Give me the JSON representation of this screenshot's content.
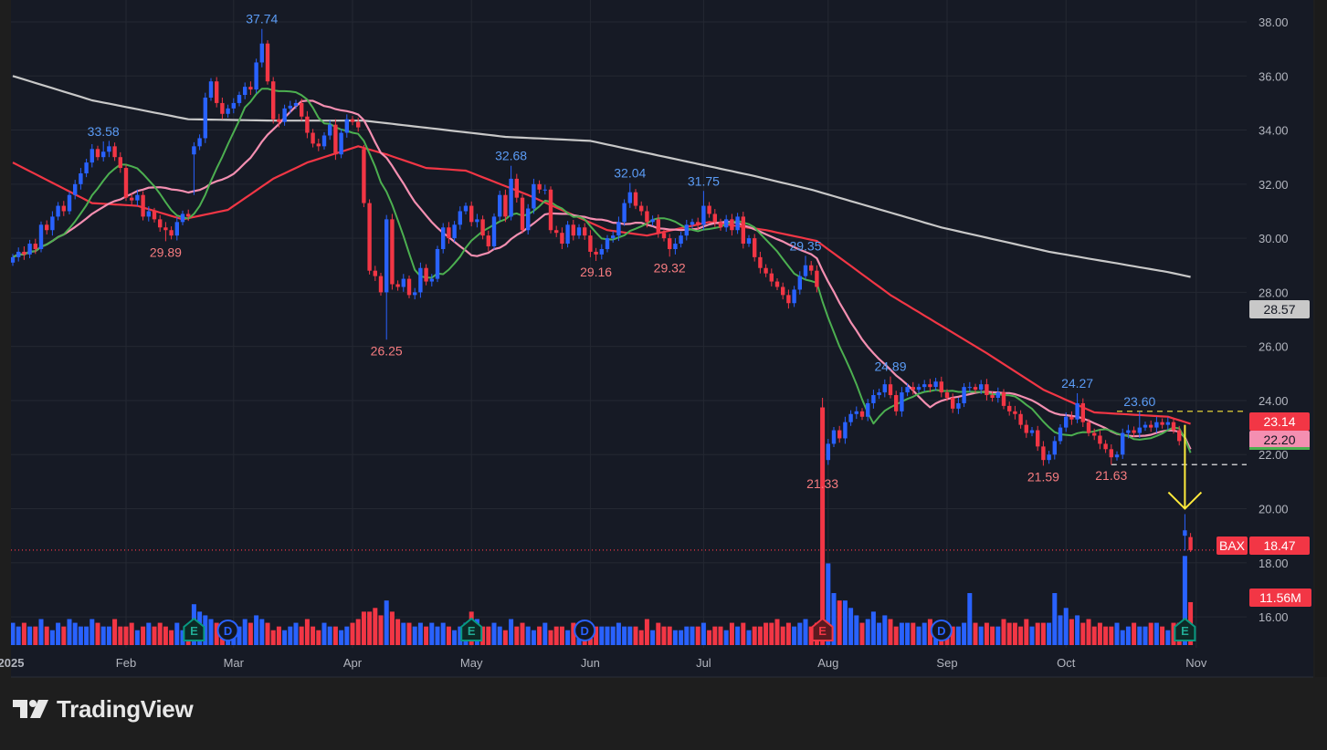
{
  "brand": "TradingView",
  "chart_data": {
    "type": "candlestick",
    "symbol": "BAX",
    "year": "2025",
    "colors": {
      "up": "#2962ff",
      "down": "#f23645",
      "background": "#161a25",
      "grid": "#242832",
      "axis_text": "#b2b5be",
      "high_label": "#5b9cf6",
      "low_label": "#f77c80",
      "ma_short": "#4caf50",
      "ma_mid": "#f48fb1",
      "ma_long": "#f23645",
      "ma_200": "#c8c8c8"
    },
    "y_axis": {
      "ticks": [
        "16.00",
        "18.00",
        "20.00",
        "22.00",
        "24.00",
        "26.00",
        "28.00",
        "30.00",
        "32.00",
        "34.00",
        "36.00",
        "38.00"
      ],
      "range": [
        16,
        38
      ]
    },
    "x_axis": {
      "labels": [
        {
          "text": "2025",
          "month": "Jan"
        },
        {
          "text": "Feb",
          "month": "Feb"
        },
        {
          "text": "Mar",
          "month": "Mar"
        },
        {
          "text": "Apr",
          "month": "Apr"
        },
        {
          "text": "May",
          "month": "May"
        },
        {
          "text": "Jun",
          "month": "Jun"
        },
        {
          "text": "Jul",
          "month": "Jul"
        },
        {
          "text": "Aug",
          "month": "Aug"
        },
        {
          "text": "Sep",
          "month": "Sep"
        },
        {
          "text": "Oct",
          "month": "Oct"
        },
        {
          "text": "Nov",
          "month": "Nov"
        }
      ]
    },
    "months": [
      {
        "label": "Jan",
        "days": [
          2,
          3,
          6,
          7,
          8,
          10,
          13,
          14,
          15,
          16,
          17,
          21,
          22,
          23,
          24,
          27,
          28,
          29,
          30,
          31
        ],
        "close": [
          29.3,
          29.5,
          29.4,
          29.8,
          29.6,
          30.5,
          30.3,
          30.8,
          31.2,
          31.0,
          31.6,
          32.0,
          32.4,
          32.8,
          33.3,
          33.0,
          33.2,
          33.4,
          33.0,
          32.6
        ],
        "volume": [
          6,
          5,
          6,
          5,
          5,
          7,
          5,
          4,
          6,
          5,
          7,
          6,
          5,
          5,
          7,
          6,
          5,
          5,
          7,
          5
        ]
      },
      {
        "label": "Feb",
        "days": [
          3,
          4,
          5,
          6,
          7,
          10,
          11,
          12,
          13,
          14,
          18,
          19,
          20,
          21,
          24,
          25,
          26,
          27,
          28
        ],
        "close": [
          31.5,
          31.4,
          31.6,
          30.8,
          31.0,
          30.7,
          30.4,
          30.3,
          30.1,
          30.6,
          30.9,
          30.8,
          33.4,
          33.7,
          35.2,
          35.8,
          35.0,
          34.6,
          34.8
        ],
        "volume": [
          5,
          6,
          4,
          5,
          6,
          5,
          6,
          5,
          4,
          6,
          4,
          5,
          11,
          9,
          8,
          7,
          6,
          5,
          4
        ]
      },
      {
        "label": "Mar",
        "days": [
          3,
          4,
          5,
          6,
          7,
          10,
          11,
          12,
          13,
          14,
          17,
          18,
          19,
          20,
          21,
          24,
          25,
          26,
          27,
          28,
          31
        ],
        "close": [
          35.0,
          35.3,
          35.6,
          35.5,
          36.5,
          37.2,
          35.8,
          34.4,
          34.3,
          34.8,
          34.9,
          35.0,
          34.5,
          33.9,
          33.5,
          33.4,
          33.8,
          34.2,
          33.1,
          33.9,
          34.4
        ],
        "volume": [
          6,
          5,
          7,
          6,
          8,
          7,
          6,
          4,
          5,
          4,
          5,
          6,
          5,
          7,
          5,
          4,
          6,
          5,
          5,
          4,
          5
        ]
      },
      {
        "label": "Apr",
        "days": [
          1,
          2,
          3,
          4,
          7,
          8,
          9,
          10,
          11,
          14,
          15,
          16,
          17,
          21,
          22,
          23,
          24,
          25,
          28,
          29,
          30
        ],
        "close": [
          34.3,
          34.1,
          31.3,
          28.8,
          28.6,
          28.0,
          30.7,
          28.3,
          28.2,
          28.5,
          27.9,
          28.0,
          28.9,
          28.4,
          28.5,
          29.6,
          30.4,
          30.0,
          30.5,
          31.0,
          31.2
        ],
        "volume": [
          6,
          7,
          9,
          9,
          10,
          8,
          12,
          9,
          7,
          6,
          6,
          5,
          6,
          5,
          6,
          5,
          6,
          5,
          4,
          5,
          6
        ]
      },
      {
        "label": "May",
        "days": [
          1,
          2,
          5,
          6,
          7,
          8,
          9,
          12,
          13,
          14,
          15,
          16,
          19,
          20,
          21,
          22,
          23,
          27,
          28,
          29,
          30
        ],
        "close": [
          30.6,
          30.7,
          30.1,
          29.7,
          30.8,
          31.6,
          30.8,
          32.2,
          31.5,
          30.3,
          31.1,
          32.0,
          31.8,
          31.8,
          30.3,
          30.2,
          29.8,
          30.5,
          30.1,
          30.4,
          30.1
        ],
        "volume": [
          9,
          7,
          5,
          5,
          6,
          5,
          4,
          7,
          5,
          6,
          5,
          4,
          5,
          6,
          4,
          5,
          5,
          4,
          6,
          5,
          5
        ]
      },
      {
        "label": "Jun",
        "days": [
          2,
          3,
          4,
          5,
          6,
          9,
          10,
          11,
          12,
          13,
          16,
          17,
          18,
          20,
          23,
          24,
          25,
          26,
          27,
          30
        ],
        "close": [
          29.5,
          29.4,
          29.6,
          30.0,
          30.1,
          30.6,
          31.3,
          31.7,
          31.2,
          31.0,
          30.6,
          30.7,
          30.2,
          30.0,
          29.6,
          29.8,
          30.1,
          30.5,
          30.6,
          30.5
        ],
        "volume": [
          6,
          5,
          5,
          5,
          5,
          6,
          5,
          5,
          5,
          4,
          7,
          4,
          6,
          5,
          5,
          4,
          4,
          5,
          5,
          5
        ]
      },
      {
        "label": "Jul",
        "days": [
          1,
          2,
          3,
          7,
          8,
          9,
          10,
          11,
          14,
          15,
          16,
          17,
          18,
          21,
          22,
          23,
          24,
          25,
          28,
          29,
          30,
          31
        ],
        "close": [
          31.2,
          30.9,
          30.6,
          30.4,
          30.7,
          30.3,
          30.8,
          29.8,
          30.0,
          29.3,
          28.9,
          28.7,
          28.4,
          28.2,
          27.9,
          27.6,
          28.1,
          28.6,
          29.0,
          28.8,
          28.2,
          21.8
        ],
        "volume": [
          6,
          4,
          5,
          5,
          4,
          6,
          5,
          6,
          4,
          5,
          5,
          6,
          6,
          7,
          5,
          6,
          5,
          6,
          7,
          5,
          6,
          64
        ]
      },
      {
        "label": "Aug",
        "days": [
          1,
          4,
          5,
          6,
          7,
          8,
          11,
          12,
          13,
          14,
          15,
          18,
          19,
          20,
          21,
          22,
          25,
          26,
          27,
          28,
          29
        ],
        "close": [
          22.4,
          22.9,
          22.6,
          23.2,
          23.5,
          23.6,
          23.4,
          23.9,
          24.2,
          24.3,
          24.6,
          24.2,
          23.6,
          24.3,
          24.5,
          24.4,
          24.5,
          24.6,
          24.5,
          24.7,
          24.3
        ],
        "volume": [
          22,
          14,
          12,
          12,
          10,
          8,
          6,
          7,
          9,
          6,
          8,
          7,
          5,
          6,
          6,
          6,
          5,
          6,
          7,
          5,
          5
        ]
      },
      {
        "label": "Sep",
        "days": [
          2,
          3,
          4,
          5,
          8,
          9,
          10,
          11,
          12,
          15,
          16,
          17,
          18,
          19,
          22,
          23,
          24,
          25,
          26,
          29,
          30
        ],
        "close": [
          24.1,
          23.7,
          23.9,
          24.5,
          24.5,
          24.4,
          24.6,
          24.2,
          24.1,
          24.3,
          23.8,
          23.6,
          23.5,
          23.1,
          22.8,
          22.9,
          22.3,
          21.8,
          22.0,
          22.5,
          23.0
        ],
        "volume": [
          6,
          5,
          5,
          6,
          14,
          6,
          5,
          6,
          5,
          5,
          7,
          6,
          6,
          5,
          7,
          5,
          6,
          6,
          6,
          14,
          8
        ]
      },
      {
        "label": "Oct",
        "days": [
          1,
          2,
          3,
          6,
          7,
          8,
          9,
          10,
          13,
          14,
          15,
          16,
          17,
          20,
          21,
          22,
          23,
          24,
          27,
          28,
          29,
          30,
          31
        ],
        "close": [
          23.4,
          23.3,
          23.9,
          23.2,
          22.8,
          22.7,
          22.4,
          22.2,
          21.9,
          22.0,
          22.8,
          22.9,
          22.8,
          23.0,
          23.1,
          23.0,
          23.2,
          23.1,
          23.2,
          22.9,
          22.5,
          19.2,
          18.47
        ],
        "volume": [
          10,
          7,
          8,
          6,
          7,
          5,
          6,
          5,
          5,
          6,
          4,
          5,
          6,
          5,
          5,
          6,
          6,
          5,
          4,
          6,
          6,
          24,
          11.56
        ]
      }
    ],
    "gap_candles": [
      {
        "month": "Feb",
        "day": 20,
        "open": 33.1,
        "low": 31.6
      },
      {
        "month": "Apr",
        "day": 3,
        "open": 33.3
      },
      {
        "month": "Jul",
        "day": 31,
        "open": 23.7,
        "high": 24.1
      },
      {
        "month": "Oct",
        "day": 30,
        "open": 19.0,
        "high": 19.8,
        "low": 18.45
      },
      {
        "month": "Oct",
        "day": 31,
        "open": 18.95,
        "high": 19.1,
        "low": 18.4
      }
    ],
    "extremes": [
      {
        "month": "Jan",
        "day": 28,
        "type": "high",
        "value": "33.58"
      },
      {
        "month": "Feb",
        "day": 12,
        "type": "low",
        "value": "29.89"
      },
      {
        "month": "Mar",
        "day": 10,
        "type": "high",
        "value": "37.74"
      },
      {
        "month": "Apr",
        "day": 9,
        "type": "low",
        "value": "26.25"
      },
      {
        "month": "May",
        "day": 12,
        "type": "high",
        "value": "32.68"
      },
      {
        "month": "Jun",
        "day": 3,
        "type": "low",
        "value": "29.16"
      },
      {
        "month": "Jun",
        "day": 11,
        "type": "high",
        "value": "32.04"
      },
      {
        "month": "Jun",
        "day": 23,
        "type": "low",
        "value": "29.32"
      },
      {
        "month": "Jul",
        "day": 1,
        "type": "high",
        "value": "31.75"
      },
      {
        "month": "Jul",
        "day": 28,
        "type": "high",
        "value": "29.35"
      },
      {
        "month": "Jul",
        "day": 31,
        "type": "low",
        "value": "21.33"
      },
      {
        "month": "Aug",
        "day": 18,
        "type": "high",
        "value": "24.89"
      },
      {
        "month": "Sep",
        "day": 25,
        "type": "low",
        "value": "21.59"
      },
      {
        "month": "Oct",
        "day": 3,
        "type": "high",
        "value": "24.27"
      },
      {
        "month": "Oct",
        "day": 13,
        "type": "low",
        "value": "21.63"
      },
      {
        "month": "Oct",
        "day": 20,
        "type": "high",
        "value": "23.60"
      }
    ],
    "ma_long_points": [
      {
        "month": "Jan",
        "day": 2,
        "value": 32.8
      },
      {
        "month": "Jan",
        "day": 24,
        "value": 31.3
      },
      {
        "month": "Feb",
        "day": 5,
        "value": 31.2
      },
      {
        "month": "Feb",
        "day": 18,
        "value": 30.7
      },
      {
        "month": "Feb",
        "day": 28,
        "value": 31.05
      },
      {
        "month": "Mar",
        "day": 12,
        "value": 32.2
      },
      {
        "month": "Mar",
        "day": 20,
        "value": 32.8
      },
      {
        "month": "Apr",
        "day": 2,
        "value": 33.4
      },
      {
        "month": "Apr",
        "day": 9,
        "value": 33.1
      },
      {
        "month": "Apr",
        "day": 21,
        "value": 32.6
      },
      {
        "month": "Apr",
        "day": 30,
        "value": 32.5
      },
      {
        "month": "May",
        "day": 15,
        "value": 31.6
      },
      {
        "month": "Jun",
        "day": 5,
        "value": 30.3
      },
      {
        "month": "Jun",
        "day": 16,
        "value": 30.1
      },
      {
        "month": "Jul",
        "day": 2,
        "value": 30.6
      },
      {
        "month": "Jul",
        "day": 17,
        "value": 30.3
      },
      {
        "month": "Jul",
        "day": 30,
        "value": 29.9
      },
      {
        "month": "Aug",
        "day": 18,
        "value": 27.9
      },
      {
        "month": "Sep",
        "day": 11,
        "value": 25.75
      },
      {
        "month": "Sep",
        "day": 25,
        "value": 24.4
      },
      {
        "month": "Oct",
        "day": 8,
        "value": 23.56
      },
      {
        "month": "Oct",
        "day": 27,
        "value": 23.4
      },
      {
        "month": "Oct",
        "day": 31,
        "value": 23.14
      }
    ],
    "ma_200_points": [
      {
        "month": "Jan",
        "day": 2,
        "value": 36.0
      },
      {
        "month": "Jan",
        "day": 24,
        "value": 35.1
      },
      {
        "month": "Feb",
        "day": 19,
        "value": 34.4
      },
      {
        "month": "Mar",
        "day": 12,
        "value": 34.35
      },
      {
        "month": "Apr",
        "day": 3,
        "value": 34.35
      },
      {
        "month": "May",
        "day": 9,
        "value": 33.75
      },
      {
        "month": "Jun",
        "day": 2,
        "value": 33.6
      },
      {
        "month": "Jul",
        "day": 15,
        "value": 32.3
      },
      {
        "month": "Jul",
        "day": 29,
        "value": 31.8
      },
      {
        "month": "Aug",
        "day": 29,
        "value": 30.4
      },
      {
        "month": "Sep",
        "day": 26,
        "value": 29.5
      },
      {
        "month": "Oct",
        "day": 27,
        "value": 28.75
      },
      {
        "month": "Oct",
        "day": 31,
        "value": 28.57
      }
    ],
    "events": [
      {
        "type": "E",
        "month": "Feb",
        "day": 20,
        "tone": "green"
      },
      {
        "type": "D",
        "month": "Feb",
        "day": 28,
        "tone": "blue"
      },
      {
        "type": "E",
        "month": "May",
        "day": 1,
        "tone": "green"
      },
      {
        "type": "D",
        "month": "May",
        "day": 30,
        "tone": "blue"
      },
      {
        "type": "E",
        "month": "Jul",
        "day": 31,
        "tone": "red"
      },
      {
        "type": "D",
        "month": "Aug",
        "day": 29,
        "tone": "blue"
      },
      {
        "type": "E",
        "month": "Oct",
        "day": 30,
        "tone": "green"
      }
    ],
    "levels": [
      {
        "value": 23.6,
        "color": "#ffeb3b",
        "style": "dashed",
        "from": {
          "month": "Oct",
          "day": 14
        }
      },
      {
        "value": 21.63,
        "color": "#ffffff",
        "style": "dashed",
        "from": {
          "month": "Oct",
          "day": 13
        }
      },
      {
        "value": 18.47,
        "color": "#f23645",
        "style": "dotted"
      }
    ],
    "arrow": {
      "color": "#ffeb3b",
      "from": 23.1,
      "to": 20.0,
      "month": "Oct",
      "day": 30
    },
    "badges": {
      "ma_200": {
        "text": "28.57",
        "bg": "#c8c8c8",
        "fg": "#131722",
        "value": 28.57
      },
      "ma_long": {
        "text": "23.14",
        "bg": "#f23645",
        "fg": "#ffffff",
        "value": 23.14
      },
      "ma_mid": {
        "text": "22.20",
        "bg": "#f48fb1",
        "fg": "#131722",
        "value": 22.2,
        "underline": "#4caf50"
      },
      "symbol": {
        "text": "BAX",
        "bg": "#f23645",
        "fg": "#ffffff"
      },
      "last_price": {
        "text": "18.47",
        "bg": "#f23645",
        "fg": "#ffffff",
        "value": 18.47
      },
      "volume": {
        "text": "11.56M",
        "bg": "#f23645",
        "fg": "#ffffff",
        "value": 11.56
      }
    }
  }
}
